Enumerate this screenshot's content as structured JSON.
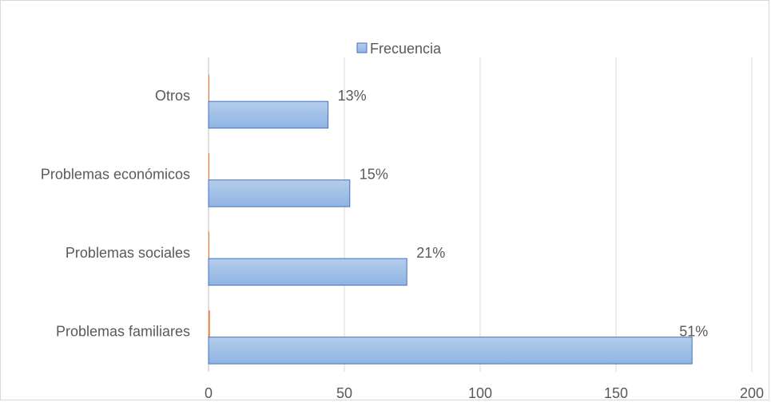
{
  "chart_data": {
    "type": "bar",
    "orientation": "horizontal",
    "categories": [
      "Problemas familiares",
      "Problemas sociales",
      "Problemas económicos",
      "Otros"
    ],
    "series": [
      {
        "name": "Frecuencia",
        "values": [
          178,
          73,
          52,
          44
        ],
        "data_labels": [
          "51%",
          "21%",
          "15%",
          "13%"
        ],
        "color": "#9dc3e6",
        "stroke": "#4472c4"
      },
      {
        "name": "",
        "values": [
          0.5,
          0.2,
          0.15,
          0.13
        ],
        "color": "#ed7d31"
      }
    ],
    "xlim": [
      0,
      200
    ],
    "x_ticks": [
      "0",
      "50",
      "100",
      "150",
      "200"
    ],
    "grid": true,
    "legend": "top-center",
    "title": "",
    "xlabel": "",
    "ylabel": ""
  }
}
